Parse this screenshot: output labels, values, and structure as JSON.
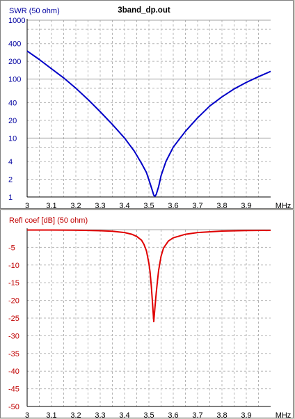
{
  "chart_data": [
    {
      "type": "line",
      "title": "3band_dp.out",
      "ylabel": "SWR (50 ohm)",
      "xlabel": "MHz",
      "xlim": [
        3.0,
        4.0
      ],
      "x_ticks": [
        "3",
        "3.1",
        "3.2",
        "3.3",
        "3.4",
        "3.5",
        "3.6",
        "3.7",
        "3.8",
        "3.9"
      ],
      "y_scale": "log",
      "ylim": [
        1,
        1000
      ],
      "y_ticks": [
        "1000",
        "400",
        "200",
        "100",
        "40",
        "20",
        "10",
        "4",
        "2",
        "1"
      ],
      "grid": true,
      "color": "#0000c8",
      "series": [
        {
          "x": [
            3.0,
            3.05,
            3.1,
            3.15,
            3.2,
            3.25,
            3.3,
            3.35,
            3.4,
            3.44,
            3.47,
            3.49,
            3.505,
            3.515,
            3.52,
            3.525,
            3.53,
            3.54,
            3.55,
            3.57,
            3.6,
            3.65,
            3.7,
            3.75,
            3.8,
            3.85,
            3.9,
            3.95,
            4.0
          ],
          "y": [
            300,
            215,
            150,
            105,
            70,
            45,
            28,
            17,
            10,
            6,
            3.7,
            2.6,
            1.7,
            1.25,
            1.07,
            1.03,
            1.1,
            1.5,
            2.3,
            4,
            7,
            13,
            22,
            35,
            50,
            68,
            88,
            110,
            135
          ]
        }
      ]
    },
    {
      "type": "line",
      "title": "",
      "ylabel": "Refl coef [dB] (50 ohm)",
      "xlabel": "MHz",
      "xlim": [
        3.0,
        4.0
      ],
      "x_ticks": [
        "3",
        "3.1",
        "3.2",
        "3.3",
        "3.4",
        "3.5",
        "3.6",
        "3.7",
        "3.8",
        "3.9"
      ],
      "ylim": [
        -50,
        0
      ],
      "y_ticks": [
        "-5",
        "-10",
        "-15",
        "-20",
        "-25",
        "-30",
        "-35",
        "-40",
        "-45",
        "-50"
      ],
      "grid": true,
      "color": "#e00000",
      "series": [
        {
          "x": [
            3.0,
            3.1,
            3.2,
            3.3,
            3.35,
            3.4,
            3.43,
            3.45,
            3.47,
            3.48,
            3.49,
            3.5,
            3.505,
            3.51,
            3.515,
            3.52,
            3.525,
            3.53,
            3.535,
            3.54,
            3.55,
            3.56,
            3.58,
            3.6,
            3.65,
            3.7,
            3.8,
            3.9,
            4.0
          ],
          "y": [
            -0.1,
            -0.1,
            -0.15,
            -0.3,
            -0.45,
            -0.8,
            -1.3,
            -1.9,
            -3.0,
            -4.2,
            -6.0,
            -9.5,
            -12.0,
            -16.0,
            -21.0,
            -26.0,
            -22.0,
            -18.0,
            -14.5,
            -11.5,
            -7.5,
            -5.2,
            -3.2,
            -2.3,
            -1.3,
            -0.8,
            -0.4,
            -0.25,
            -0.2
          ]
        }
      ]
    }
  ]
}
